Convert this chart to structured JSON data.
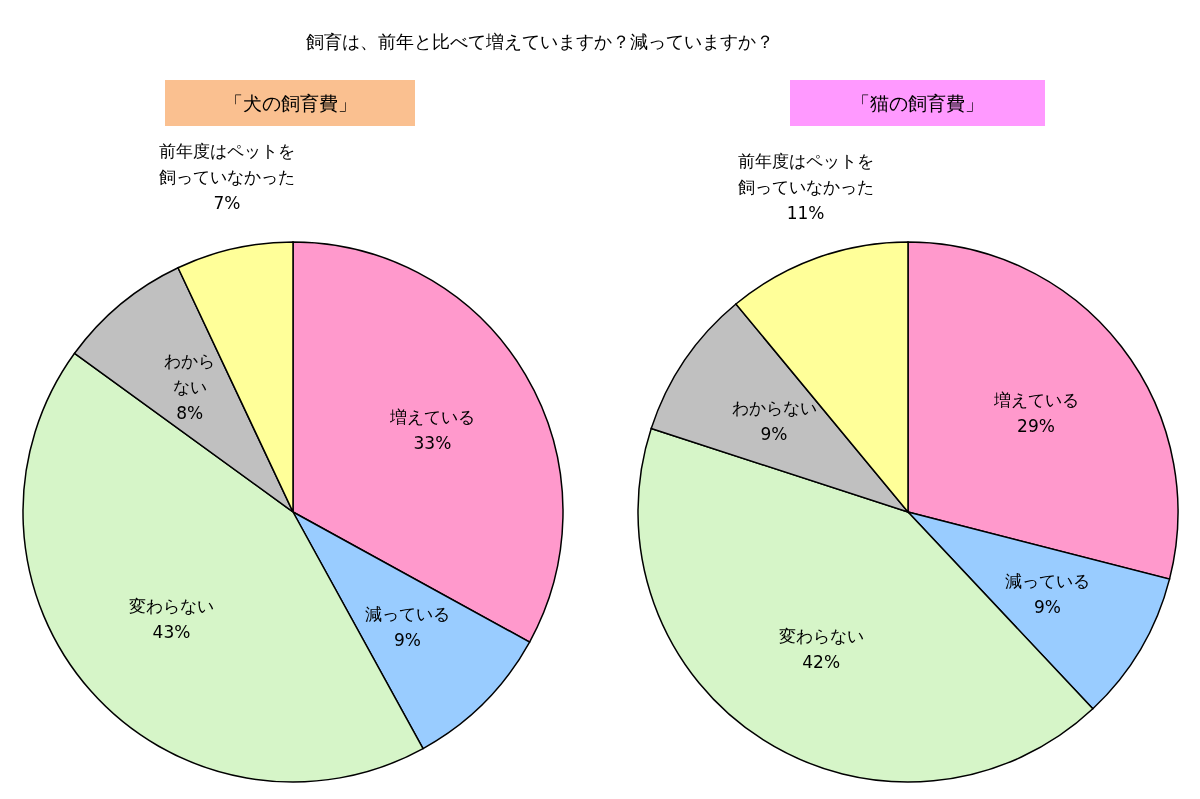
{
  "chart_data": [
    {
      "type": "pie",
      "title": "「犬の飼育費」",
      "subtitle": "飼育は、前年と比べて増えていますか？減っていますか？",
      "categories": [
        "増えている",
        "減っている",
        "変わらない",
        "わからない",
        "前年度はペットを飼っていなかった"
      ],
      "values": [
        33,
        9,
        43,
        8,
        7
      ],
      "value_labels": [
        "33%",
        "9%",
        "43%",
        "8%",
        "7%"
      ],
      "colors": [
        "#ff99cc",
        "#99ccff",
        "#d6f5c8",
        "#c0c0c0",
        "#ffff99"
      ]
    },
    {
      "type": "pie",
      "title": "「猫の飼育費」",
      "categories": [
        "増えている",
        "減っている",
        "変わらない",
        "わからない",
        "前年度はペットを飼っていなかった"
      ],
      "values": [
        29,
        9,
        42,
        9,
        11
      ],
      "value_labels": [
        "29%",
        "9%",
        "42%",
        "9%",
        "11%"
      ],
      "colors": [
        "#ff99cc",
        "#99ccff",
        "#d6f5c8",
        "#c0c0c0",
        "#ffff99"
      ]
    }
  ]
}
